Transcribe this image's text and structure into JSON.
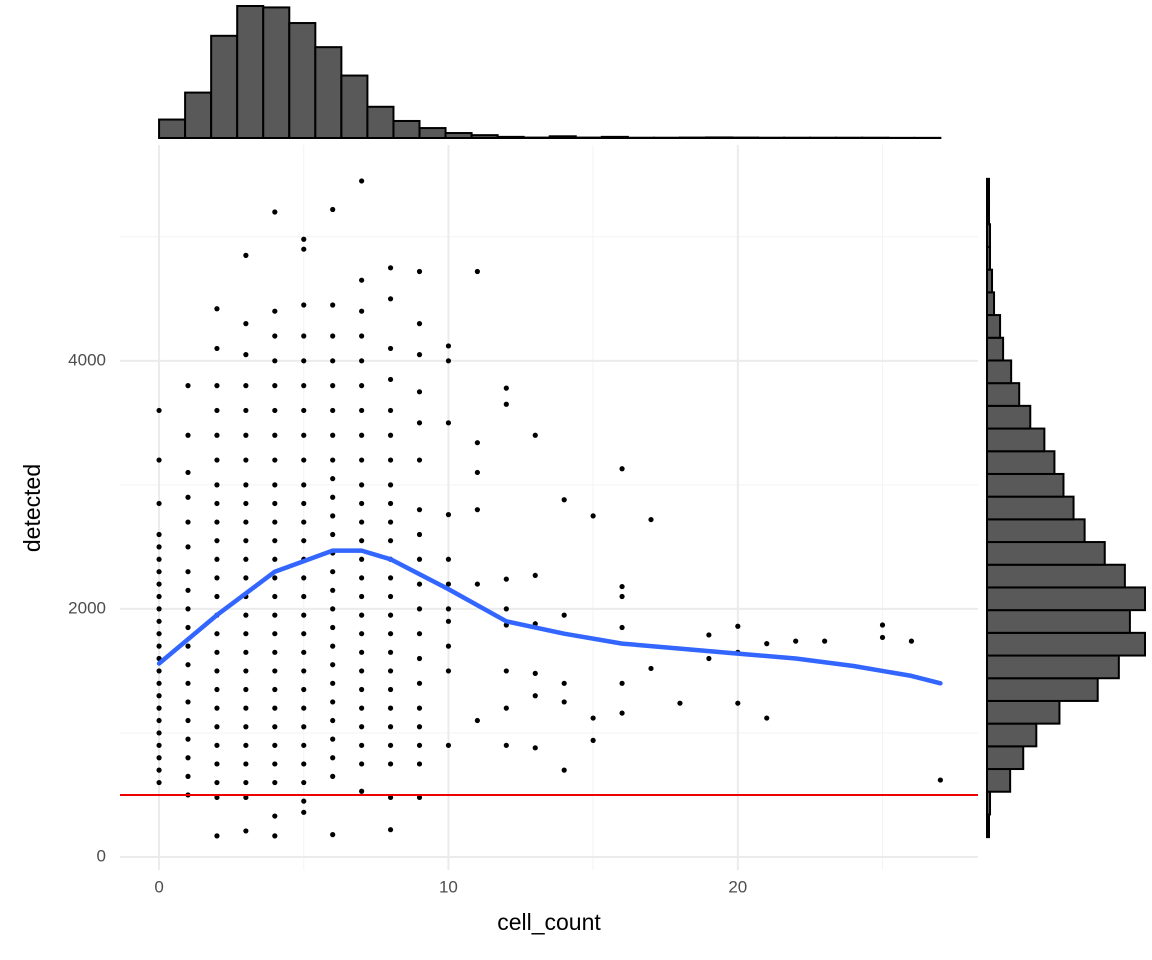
{
  "chart_data": {
    "type": "scatter",
    "xlabel": "cell_count",
    "ylabel": "detected",
    "xlim": [
      -1.35,
      28.3
    ],
    "ylim": [
      -105,
      5740
    ],
    "xticks": [
      0,
      10,
      20
    ],
    "yticks": [
      0,
      2000,
      4000
    ],
    "xminor": [
      5,
      15,
      25
    ],
    "yminor": [
      1000,
      3000,
      5000
    ],
    "grid": true,
    "point_color": "#000000",
    "points": [
      [
        0,
        600
      ],
      [
        0,
        700
      ],
      [
        0,
        800
      ],
      [
        0,
        900
      ],
      [
        0,
        1000
      ],
      [
        0,
        1100
      ],
      [
        0,
        1200
      ],
      [
        0,
        1300
      ],
      [
        0,
        1400
      ],
      [
        0,
        1500
      ],
      [
        0,
        1600
      ],
      [
        0,
        1700
      ],
      [
        0,
        1800
      ],
      [
        0,
        1900
      ],
      [
        0,
        2000
      ],
      [
        0,
        2100
      ],
      [
        0,
        2200
      ],
      [
        0,
        2300
      ],
      [
        0,
        2400
      ],
      [
        0,
        2500
      ],
      [
        0,
        2600
      ],
      [
        0,
        2850
      ],
      [
        0,
        3200
      ],
      [
        0,
        3600
      ],
      [
        1,
        500
      ],
      [
        1,
        650
      ],
      [
        1,
        800
      ],
      [
        1,
        950
      ],
      [
        1,
        1100
      ],
      [
        1,
        1250
      ],
      [
        1,
        1400
      ],
      [
        1,
        1550
      ],
      [
        1,
        1700
      ],
      [
        1,
        1850
      ],
      [
        1,
        2000
      ],
      [
        1,
        2150
      ],
      [
        1,
        2300
      ],
      [
        1,
        2500
      ],
      [
        1,
        2700
      ],
      [
        1,
        2900
      ],
      [
        1,
        3100
      ],
      [
        1,
        3400
      ],
      [
        1,
        3800
      ],
      [
        2,
        170
      ],
      [
        2,
        480
      ],
      [
        2,
        600
      ],
      [
        2,
        750
      ],
      [
        2,
        900
      ],
      [
        2,
        1050
      ],
      [
        2,
        1200
      ],
      [
        2,
        1350
      ],
      [
        2,
        1500
      ],
      [
        2,
        1650
      ],
      [
        2,
        1800
      ],
      [
        2,
        1950
      ],
      [
        2,
        2100
      ],
      [
        2,
        2250
      ],
      [
        2,
        2400
      ],
      [
        2,
        2550
      ],
      [
        2,
        2700
      ],
      [
        2,
        2850
      ],
      [
        2,
        3000
      ],
      [
        2,
        3200
      ],
      [
        2,
        3400
      ],
      [
        2,
        3600
      ],
      [
        2,
        3800
      ],
      [
        2,
        4100
      ],
      [
        2,
        4420
      ],
      [
        3,
        210
      ],
      [
        3,
        480
      ],
      [
        3,
        600
      ],
      [
        3,
        750
      ],
      [
        3,
        900
      ],
      [
        3,
        1050
      ],
      [
        3,
        1200
      ],
      [
        3,
        1350
      ],
      [
        3,
        1500
      ],
      [
        3,
        1650
      ],
      [
        3,
        1800
      ],
      [
        3,
        1950
      ],
      [
        3,
        2100
      ],
      [
        3,
        2250
      ],
      [
        3,
        2400
      ],
      [
        3,
        2550
      ],
      [
        3,
        2700
      ],
      [
        3,
        2850
      ],
      [
        3,
        3000
      ],
      [
        3,
        3200
      ],
      [
        3,
        3400
      ],
      [
        3,
        3600
      ],
      [
        3,
        3800
      ],
      [
        3,
        4050
      ],
      [
        3,
        4300
      ],
      [
        3,
        4850
      ],
      [
        4,
        170
      ],
      [
        4,
        330
      ],
      [
        4,
        600
      ],
      [
        4,
        750
      ],
      [
        4,
        900
      ],
      [
        4,
        1050
      ],
      [
        4,
        1200
      ],
      [
        4,
        1350
      ],
      [
        4,
        1500
      ],
      [
        4,
        1650
      ],
      [
        4,
        1800
      ],
      [
        4,
        1950
      ],
      [
        4,
        2100
      ],
      [
        4,
        2250
      ],
      [
        4,
        2400
      ],
      [
        4,
        2550
      ],
      [
        4,
        2700
      ],
      [
        4,
        2850
      ],
      [
        4,
        3000
      ],
      [
        4,
        3200
      ],
      [
        4,
        3400
      ],
      [
        4,
        3600
      ],
      [
        4,
        3800
      ],
      [
        4,
        4000
      ],
      [
        4,
        4200
      ],
      [
        4,
        4400
      ],
      [
        4,
        5200
      ],
      [
        5,
        360
      ],
      [
        5,
        450
      ],
      [
        5,
        600
      ],
      [
        5,
        750
      ],
      [
        5,
        900
      ],
      [
        5,
        1050
      ],
      [
        5,
        1200
      ],
      [
        5,
        1350
      ],
      [
        5,
        1500
      ],
      [
        5,
        1650
      ],
      [
        5,
        1800
      ],
      [
        5,
        1950
      ],
      [
        5,
        2100
      ],
      [
        5,
        2250
      ],
      [
        5,
        2400
      ],
      [
        5,
        2550
      ],
      [
        5,
        2700
      ],
      [
        5,
        2850
      ],
      [
        5,
        3000
      ],
      [
        5,
        3200
      ],
      [
        5,
        3400
      ],
      [
        5,
        3600
      ],
      [
        5,
        3800
      ],
      [
        5,
        4000
      ],
      [
        5,
        4200
      ],
      [
        5,
        4450
      ],
      [
        5,
        4900
      ],
      [
        5,
        4980
      ],
      [
        6,
        180
      ],
      [
        6,
        650
      ],
      [
        6,
        800
      ],
      [
        6,
        950
      ],
      [
        6,
        1100
      ],
      [
        6,
        1250
      ],
      [
        6,
        1400
      ],
      [
        6,
        1550
      ],
      [
        6,
        1700
      ],
      [
        6,
        1850
      ],
      [
        6,
        2000
      ],
      [
        6,
        2150
      ],
      [
        6,
        2300
      ],
      [
        6,
        2450
      ],
      [
        6,
        2600
      ],
      [
        6,
        2750
      ],
      [
        6,
        2900
      ],
      [
        6,
        3050
      ],
      [
        6,
        3200
      ],
      [
        6,
        3400
      ],
      [
        6,
        3600
      ],
      [
        6,
        3800
      ],
      [
        6,
        4000
      ],
      [
        6,
        4200
      ],
      [
        6,
        4450
      ],
      [
        6,
        5220
      ],
      [
        7,
        530
      ],
      [
        7,
        750
      ],
      [
        7,
        900
      ],
      [
        7,
        1050
      ],
      [
        7,
        1200
      ],
      [
        7,
        1350
      ],
      [
        7,
        1500
      ],
      [
        7,
        1650
      ],
      [
        7,
        1800
      ],
      [
        7,
        1950
      ],
      [
        7,
        2100
      ],
      [
        7,
        2250
      ],
      [
        7,
        2400
      ],
      [
        7,
        2550
      ],
      [
        7,
        2700
      ],
      [
        7,
        2850
      ],
      [
        7,
        3000
      ],
      [
        7,
        3200
      ],
      [
        7,
        3400
      ],
      [
        7,
        3600
      ],
      [
        7,
        3800
      ],
      [
        7,
        4000
      ],
      [
        7,
        4200
      ],
      [
        7,
        4400
      ],
      [
        7,
        4650
      ],
      [
        7,
        5450
      ],
      [
        8,
        220
      ],
      [
        8,
        480
      ],
      [
        8,
        750
      ],
      [
        8,
        900
      ],
      [
        8,
        1050
      ],
      [
        8,
        1200
      ],
      [
        8,
        1350
      ],
      [
        8,
        1500
      ],
      [
        8,
        1650
      ],
      [
        8,
        1800
      ],
      [
        8,
        1950
      ],
      [
        8,
        2100
      ],
      [
        8,
        2250
      ],
      [
        8,
        2400
      ],
      [
        8,
        2550
      ],
      [
        8,
        2700
      ],
      [
        8,
        2850
      ],
      [
        8,
        3000
      ],
      [
        8,
        3200
      ],
      [
        8,
        3400
      ],
      [
        8,
        3600
      ],
      [
        8,
        3850
      ],
      [
        8,
        4100
      ],
      [
        8,
        4500
      ],
      [
        8,
        4750
      ],
      [
        9,
        480
      ],
      [
        9,
        750
      ],
      [
        9,
        900
      ],
      [
        9,
        1050
      ],
      [
        9,
        1200
      ],
      [
        9,
        1400
      ],
      [
        9,
        1600
      ],
      [
        9,
        1800
      ],
      [
        9,
        2000
      ],
      [
        9,
        2200
      ],
      [
        9,
        2400
      ],
      [
        9,
        2600
      ],
      [
        9,
        2800
      ],
      [
        9,
        3200
      ],
      [
        9,
        3500
      ],
      [
        9,
        3750
      ],
      [
        9,
        4050
      ],
      [
        9,
        4300
      ],
      [
        9,
        4720
      ],
      [
        10,
        900
      ],
      [
        10,
        1500
      ],
      [
        10,
        1700
      ],
      [
        10,
        1900
      ],
      [
        10,
        2000
      ],
      [
        10,
        2200
      ],
      [
        10,
        2400
      ],
      [
        10,
        2760
      ],
      [
        10,
        3500
      ],
      [
        10,
        4000
      ],
      [
        10,
        4120
      ],
      [
        11,
        1100
      ],
      [
        11,
        2200
      ],
      [
        11,
        2800
      ],
      [
        11,
        3100
      ],
      [
        11,
        3340
      ],
      [
        11,
        4720
      ],
      [
        12,
        900
      ],
      [
        12,
        1200
      ],
      [
        12,
        1500
      ],
      [
        12,
        1870
      ],
      [
        12,
        2000
      ],
      [
        12,
        2240
      ],
      [
        12,
        3650
      ],
      [
        12,
        3780
      ],
      [
        13,
        880
      ],
      [
        13,
        1300
      ],
      [
        13,
        1480
      ],
      [
        13,
        1880
      ],
      [
        13,
        2270
      ],
      [
        13,
        3400
      ],
      [
        14,
        700
      ],
      [
        14,
        1250
      ],
      [
        14,
        1400
      ],
      [
        14,
        1950
      ],
      [
        14,
        2880
      ],
      [
        15,
        940
      ],
      [
        15,
        1120
      ],
      [
        15,
        2750
      ],
      [
        16,
        1160
      ],
      [
        16,
        1400
      ],
      [
        16,
        1850
      ],
      [
        16,
        2100
      ],
      [
        16,
        2180
      ],
      [
        16,
        3130
      ],
      [
        17,
        1520
      ],
      [
        17,
        2720
      ],
      [
        18,
        1240
      ],
      [
        19,
        1600
      ],
      [
        19,
        1790
      ],
      [
        20,
        1240
      ],
      [
        20,
        1650
      ],
      [
        20,
        1860
      ],
      [
        21,
        1120
      ],
      [
        21,
        1720
      ],
      [
        22,
        1740
      ],
      [
        23,
        1740
      ],
      [
        25,
        1770
      ],
      [
        25,
        1870
      ],
      [
        26,
        1740
      ],
      [
        27,
        620
      ]
    ],
    "smooth": {
      "color": "#3366ff",
      "x": [
        0,
        2,
        4,
        6,
        7,
        8,
        10,
        12,
        14,
        16,
        18,
        20,
        22,
        24,
        26,
        27
      ],
      "y": [
        1560,
        1950,
        2300,
        2470,
        2470,
        2400,
        2160,
        1900,
        1800,
        1720,
        1680,
        1640,
        1600,
        1540,
        1460,
        1400
      ]
    },
    "hline": {
      "value": 500,
      "color": "#ee0000"
    },
    "top_histogram": {
      "color": "#595959",
      "edgecolor": "#000000",
      "countlim": [
        0,
        930
      ],
      "bins": [
        0,
        0.9,
        1.8,
        2.7,
        3.6,
        4.5,
        5.4,
        6.3,
        7.2,
        8.1,
        9,
        9.9,
        10.8,
        11.7,
        12.6,
        13.5,
        14.4,
        15.3,
        16.2,
        17.1,
        18,
        18.9,
        19.8,
        20.7,
        21.6,
        22.5,
        23.4,
        24.3,
        25.2,
        26.1,
        27
      ],
      "counts": [
        130,
        320,
        720,
        930,
        920,
        810,
        640,
        440,
        220,
        120,
        70,
        35,
        20,
        8,
        3,
        12,
        3,
        8,
        2,
        2,
        3,
        4,
        3,
        2,
        2,
        2,
        2,
        2,
        1,
        1
      ]
    },
    "right_histogram": {
      "color": "#595959",
      "edgecolor": "#000000",
      "countlim": [
        0,
        942
      ],
      "bins": [
        160,
        343,
        526,
        709,
        892,
        1075,
        1258,
        1441,
        1624,
        1807,
        1990,
        2173,
        2356,
        2539,
        2722,
        2905,
        3088,
        3271,
        3454,
        3637,
        3820,
        4003,
        4186,
        4369,
        4552,
        4735,
        4918,
        5101,
        5284,
        5467
      ],
      "counts": [
        12,
        18,
        138,
        216,
        294,
        432,
        660,
        786,
        942,
        852,
        942,
        822,
        702,
        582,
        516,
        456,
        402,
        342,
        258,
        192,
        144,
        96,
        78,
        42,
        30,
        18,
        18,
        12,
        12
      ]
    }
  }
}
